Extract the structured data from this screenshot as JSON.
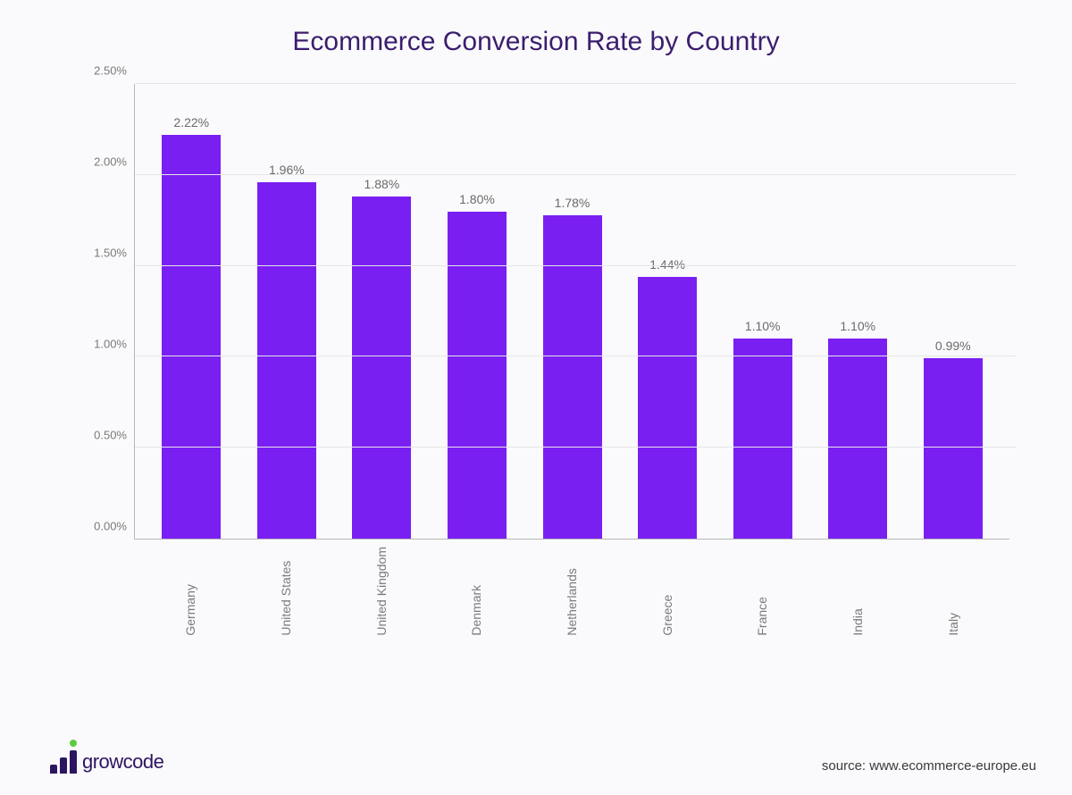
{
  "title": "Ecommerce Conversion Rate by Country",
  "chart": {
    "type": "bar",
    "categories": [
      "Germany",
      "United States",
      "United Kingdom",
      "Denmark",
      "Netherlands",
      "Greece",
      "France",
      "India",
      "Italy"
    ],
    "values": [
      2.22,
      1.96,
      1.88,
      1.8,
      1.78,
      1.44,
      1.1,
      1.1,
      0.99
    ],
    "value_labels": [
      "2.22%",
      "1.96%",
      "1.88%",
      "1.80%",
      "1.78%",
      "1.44%",
      "1.10%",
      "1.10%",
      "0.99%"
    ],
    "bar_color": "#7a1ff2",
    "ylim": [
      0,
      2.5
    ],
    "ytick_step": 0.5,
    "yticks": [
      "0.00%",
      "0.50%",
      "1.00%",
      "1.50%",
      "2.00%",
      "2.50%"
    ],
    "grid_color": "#e6e6e6",
    "axis_color": "#b8b8b8",
    "background_color": "#fafafc",
    "label_color": "#7a7a7a",
    "value_label_fontsize": 14,
    "tick_fontsize": 13,
    "category_fontsize": 14,
    "bar_width": 0.62
  },
  "logo": {
    "text": "growcode",
    "text_color": "#2d1560",
    "bar_color": "#2d1560",
    "dot_color": "#5bcc3e"
  },
  "source": "source: www.ecommerce-europe.eu",
  "title_color": "#3b1d6e",
  "title_fontsize": 30
}
